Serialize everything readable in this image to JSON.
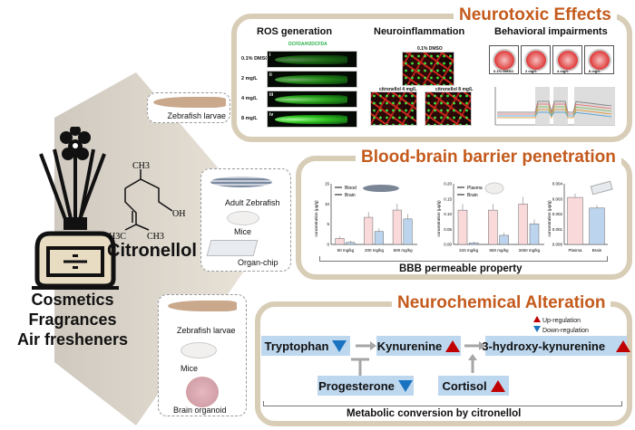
{
  "left": {
    "products": [
      "Cosmetics",
      "Fragrances",
      "Air fresheners"
    ],
    "compound": "Citronellol",
    "structure_labels": {
      "ch3_top": "CH3",
      "oh": "OH",
      "h3c": "H3C",
      "ch3_right": "CH3"
    }
  },
  "models": {
    "neurotoxic": [
      "Zebrafish larvae"
    ],
    "bbb": [
      "Adult Zebrafish",
      "Mice",
      "Organ-chip"
    ],
    "neurochemical": [
      "Zebrafish larvae",
      "Mice",
      "Brain organoid"
    ]
  },
  "neurotoxic": {
    "title": "Neurotoxic Effects",
    "sections": [
      "ROS generation",
      "Neuroinflammation",
      "Behavioral impairments"
    ],
    "ros": {
      "stain": "DCFDA/H2DCFDA",
      "doses": [
        "0.1% DMSO",
        "2 mg/L",
        "4 mg/L",
        "8 mg/L"
      ],
      "panels": [
        "i",
        "ii",
        "iii",
        "iv"
      ]
    },
    "inflammation": {
      "labels": [
        "0.1% DMSO",
        "citronellol 4 mg/L",
        "citronellol 8 mg/L"
      ]
    },
    "behavior": {
      "dishes": [
        "0.1% DMSO",
        "2 mg/L",
        "4 mg/L",
        "8 mg/L"
      ],
      "series_colors": [
        "#888888",
        "#e57a7a",
        "#8fc36a",
        "#e0a050",
        "#5aa8d8"
      ]
    }
  },
  "bbb": {
    "title": "Blood-brain barrier penetration",
    "footer": "BBB permeable property",
    "colors": {
      "a": "#f9d9da",
      "b": "#bcd4ee"
    },
    "charts": [
      {
        "ylabel": "concentration (μg/g)",
        "legend": [
          "Blood",
          "Brain"
        ],
        "categories": [
          "50 mg/kg",
          "200 mg/kg",
          "500 mg/kg"
        ],
        "ylim": [
          0,
          15
        ],
        "ticks": [
          "0",
          "5",
          "10",
          "15"
        ],
        "series": [
          {
            "name": "Blood",
            "values": [
              1.5,
              6.7,
              8.5
            ]
          },
          {
            "name": "Brain",
            "values": [
              0.5,
              3.2,
              6.3
            ]
          }
        ]
      },
      {
        "ylabel": "concentration (μg/g)",
        "legend": [
          "Plasma",
          "Brain"
        ],
        "categories": [
          "343 mg/kg",
          "650 mg/kg",
          "3450 mg/kg"
        ],
        "ylim": [
          0,
          0.2
        ],
        "ticks": [
          "0.00",
          "0.05",
          "0.10",
          "0.15",
          "0.20"
        ],
        "series": [
          {
            "name": "Plasma",
            "values": [
              0.113,
              0.113,
              0.133
            ]
          },
          {
            "name": "Brain",
            "values": [
              0.005,
              0.03,
              0.068
            ]
          }
        ]
      },
      {
        "ylabel": "concentration (μg/g)",
        "legend": [],
        "categories": [
          "Plasma",
          "Brain"
        ],
        "ylim": [
          0,
          0.004
        ],
        "ticks": [
          "0.000",
          "0.001",
          "0.002",
          "0.003",
          "0.004"
        ],
        "series": [
          {
            "name": "",
            "values": [
              0.0031,
              0.0024
            ]
          }
        ]
      }
    ]
  },
  "neurochem": {
    "title": "Neurochemical Alteration",
    "legend": {
      "up": "Up-regulation",
      "down": "Down-regulation"
    },
    "nodes": {
      "tryptophan": "Tryptophan",
      "kynurenine": "Kynurenine",
      "hk": "3-hydroxy-kynurenine",
      "progesterone": "Progesterone",
      "cortisol": "Cortisol"
    },
    "footer": "Metabolic conversion by citronellol"
  }
}
